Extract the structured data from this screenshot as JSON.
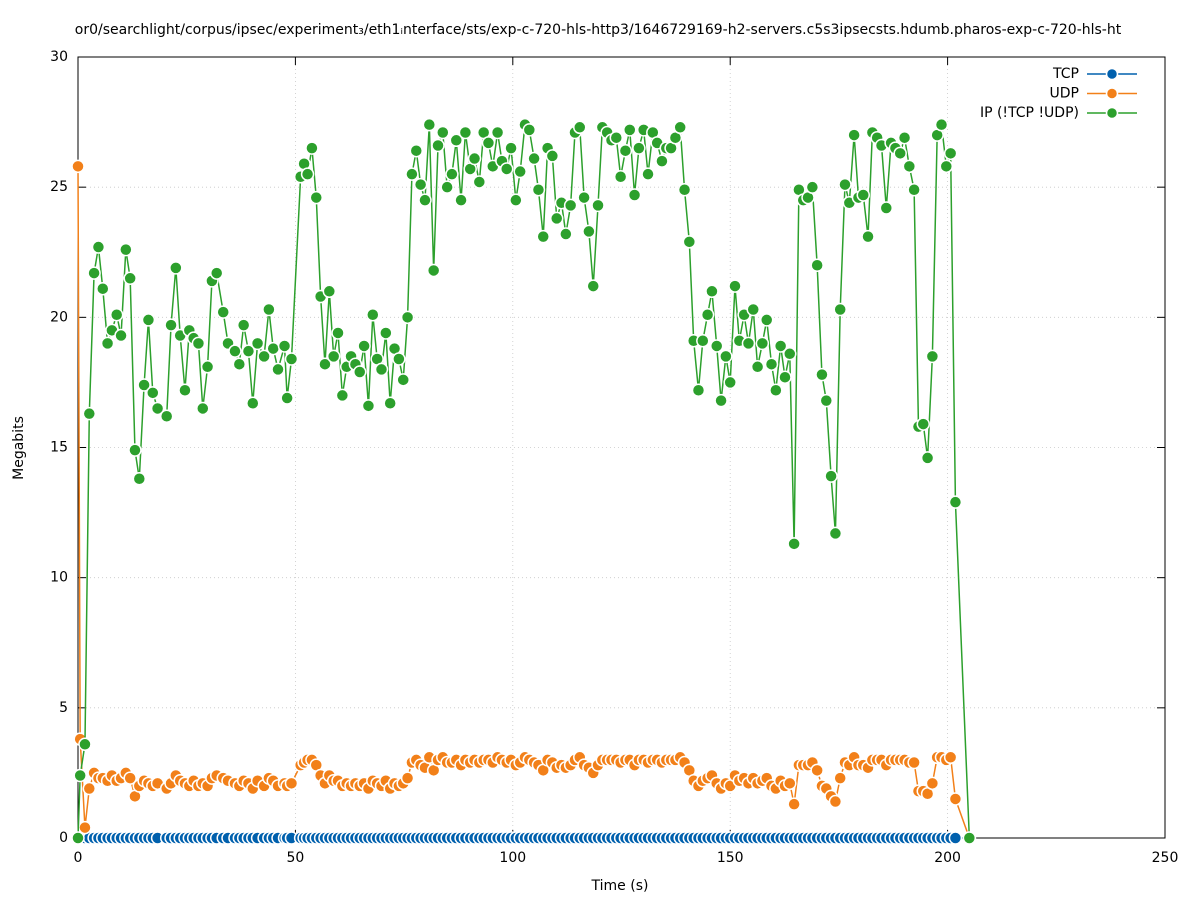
{
  "chart_data": {
    "type": "line",
    "title": "or0/searchlight/corpus/ipsec/experiment₃/eth1ᵢnterface/sts/exp-c-720-hls-http3/1646729169-h2-servers.c5s3ipsecsts.hdumb.pharos-exp-c-720-hls-ht",
    "x_label": "Time (s)",
    "y_label": "Megabits",
    "xlim": [
      0,
      250
    ],
    "xticks": [
      0,
      50,
      100,
      150,
      200,
      250
    ],
    "ylim": [
      0,
      30
    ],
    "yticks": [
      0,
      5,
      10,
      15,
      20,
      25,
      30
    ],
    "grid": true,
    "legend": "top-right",
    "x": [
      0,
      0.5,
      1.6,
      2.6,
      3.7,
      4.7,
      5.7,
      6.8,
      7.8,
      8.9,
      9.9,
      11.0,
      12.0,
      13.1,
      14.1,
      15.2,
      16.2,
      17.2,
      18.3,
      20.4,
      21.4,
      22.5,
      23.5,
      24.6,
      25.6,
      26.6,
      27.7,
      28.7,
      29.8,
      30.8,
      31.9,
      33.4,
      34.5,
      36.1,
      37.1,
      38.1,
      39.2,
      40.2,
      41.3,
      42.8,
      43.9,
      44.9,
      46.0,
      47.5,
      48.1,
      49.1,
      51.2,
      52.0,
      52.8,
      53.8,
      54.8,
      55.8,
      56.8,
      57.8,
      58.8,
      59.8,
      60.8,
      61.8,
      62.8,
      63.8,
      64.8,
      65.8,
      66.8,
      67.8,
      68.8,
      69.8,
      70.8,
      71.8,
      72.8,
      73.8,
      74.8,
      75.8,
      76.8,
      77.8,
      78.8,
      79.8,
      80.8,
      81.8,
      82.8,
      83.9,
      84.9,
      86.0,
      87.0,
      88.1,
      89.1,
      90.2,
      91.2,
      92.3,
      93.3,
      94.4,
      95.4,
      96.5,
      97.5,
      98.6,
      99.6,
      100.7,
      101.7,
      102.8,
      103.8,
      104.9,
      105.9,
      107.0,
      108.0,
      109.1,
      110.1,
      111.2,
      112.2,
      113.3,
      114.3,
      115.4,
      116.4,
      117.5,
      118.5,
      119.6,
      120.6,
      121.7,
      122.7,
      123.8,
      124.8,
      125.9,
      126.9,
      128.0,
      129.0,
      130.1,
      131.1,
      132.2,
      133.2,
      134.3,
      135.3,
      136.4,
      137.4,
      138.5,
      139.5,
      140.6,
      141.6,
      142.7,
      143.7,
      144.8,
      145.8,
      146.9,
      147.9,
      149.0,
      150.0,
      151.1,
      152.1,
      153.2,
      154.2,
      155.3,
      156.3,
      157.4,
      158.4,
      159.5,
      160.5,
      161.6,
      162.6,
      163.7,
      164.7,
      165.8,
      166.8,
      167.9,
      168.9,
      170.0,
      171.1,
      172.1,
      173.2,
      174.2,
      175.3,
      176.4,
      177.4,
      178.5,
      179.5,
      180.6,
      181.7,
      182.7,
      183.8,
      184.8,
      185.9,
      187.0,
      188.0,
      189.1,
      190.1,
      191.2,
      192.3,
      193.3,
      194.4,
      195.4,
      196.5,
      197.6,
      198.6,
      199.7,
      200.7,
      201.8,
      205.0
    ],
    "series": [
      {
        "name": "TCP",
        "color": "#0060ad",
        "values": [
          0,
          0,
          0,
          0,
          0,
          0,
          0,
          0,
          0,
          0,
          0,
          0,
          0,
          0,
          0,
          0,
          0,
          0,
          0,
          0,
          0,
          0,
          0,
          0,
          0,
          0,
          0,
          0,
          0,
          0,
          0,
          0,
          0,
          0,
          0,
          0,
          0,
          0,
          0,
          0,
          0,
          0,
          0,
          0,
          0,
          0,
          0,
          0,
          0,
          0,
          0,
          0,
          0,
          0,
          0,
          0,
          0,
          0,
          0,
          0,
          0,
          0,
          0,
          0,
          0,
          0,
          0,
          0,
          0,
          0,
          0,
          0,
          0,
          0,
          0,
          0,
          0,
          0,
          0,
          0,
          0,
          0,
          0,
          0,
          0,
          0,
          0,
          0,
          0,
          0,
          0,
          0,
          0,
          0,
          0,
          0,
          0,
          0,
          0,
          0,
          0,
          0,
          0,
          0,
          0,
          0,
          0,
          0,
          0,
          0,
          0,
          0,
          0,
          0,
          0,
          0,
          0,
          0,
          0,
          0,
          0,
          0,
          0,
          0,
          0,
          0,
          0,
          0,
          0,
          0,
          0,
          0,
          0,
          0,
          0,
          0,
          0,
          0,
          0,
          0,
          0,
          0,
          0,
          0,
          0,
          0,
          0,
          0,
          0,
          0,
          0,
          0,
          0,
          0,
          0,
          0,
          0,
          0,
          0,
          0,
          0,
          0,
          0,
          0,
          0,
          0,
          0,
          0,
          0,
          0,
          0,
          0,
          0,
          0,
          0,
          0,
          0,
          0,
          0,
          0,
          0,
          0,
          0,
          0,
          0,
          0,
          0,
          0,
          0,
          0,
          0,
          0,
          0
        ]
      },
      {
        "name": "UDP",
        "color": "#f28019",
        "values": [
          25.8,
          3.8,
          0.4,
          1.9,
          2.5,
          2.3,
          2.3,
          2.2,
          2.4,
          2.2,
          2.3,
          2.5,
          2.3,
          1.6,
          2.0,
          2.2,
          2.1,
          2.0,
          2.1,
          1.9,
          2.1,
          2.4,
          2.2,
          2.1,
          2.0,
          2.2,
          2.0,
          2.1,
          2.0,
          2.3,
          2.4,
          2.3,
          2.2,
          2.1,
          2.0,
          2.2,
          2.1,
          1.9,
          2.2,
          2.0,
          2.3,
          2.2,
          2.0,
          2.1,
          2.0,
          2.1,
          2.8,
          2.9,
          3.0,
          3.0,
          2.8,
          2.4,
          2.1,
          2.4,
          2.2,
          2.2,
          2.0,
          2.1,
          2.0,
          2.1,
          2.0,
          2.1,
          1.9,
          2.2,
          2.1,
          2.0,
          2.2,
          1.9,
          2.1,
          2.0,
          2.1,
          2.3,
          2.9,
          3.0,
          2.8,
          2.7,
          3.1,
          2.6,
          3.0,
          3.1,
          2.9,
          2.9,
          3.0,
          2.8,
          3.0,
          2.9,
          3.0,
          2.9,
          3.0,
          3.0,
          2.9,
          3.1,
          3.0,
          2.9,
          3.0,
          2.8,
          2.9,
          3.1,
          3.0,
          2.9,
          2.8,
          2.6,
          3.0,
          2.9,
          2.7,
          2.8,
          2.7,
          2.8,
          3.0,
          3.1,
          2.8,
          2.7,
          2.5,
          2.8,
          3.0,
          3.0,
          3.0,
          3.0,
          2.9,
          3.0,
          3.0,
          2.8,
          3.0,
          3.0,
          2.9,
          3.0,
          3.0,
          2.9,
          3.0,
          3.0,
          3.0,
          3.1,
          2.9,
          2.6,
          2.2,
          2.0,
          2.2,
          2.3,
          2.4,
          2.1,
          1.9,
          2.1,
          2.0,
          2.4,
          2.2,
          2.3,
          2.1,
          2.3,
          2.1,
          2.2,
          2.3,
          2.0,
          1.9,
          2.2,
          2.0,
          2.1,
          1.3,
          2.8,
          2.8,
          2.8,
          2.9,
          2.6,
          2.0,
          1.9,
          1.6,
          1.4,
          2.3,
          2.9,
          2.8,
          3.1,
          2.8,
          2.8,
          2.7,
          3.0,
          3.0,
          3.0,
          2.8,
          3.0,
          3.0,
          3.0,
          3.0,
          2.9,
          2.9,
          1.8,
          1.8,
          1.7,
          2.1,
          3.1,
          3.1,
          3.0,
          3.1,
          1.5,
          0
        ]
      },
      {
        "name": "IP (!TCP  !UDP)",
        "color": "#2ca02c",
        "values": [
          0,
          2.4,
          3.6,
          16.3,
          21.7,
          22.7,
          21.1,
          19.0,
          19.5,
          20.1,
          19.3,
          22.6,
          21.5,
          14.9,
          13.8,
          17.4,
          19.9,
          17.1,
          16.5,
          16.2,
          19.7,
          21.9,
          19.3,
          17.2,
          19.5,
          19.2,
          19.0,
          16.5,
          18.1,
          21.4,
          21.7,
          20.2,
          19.0,
          18.7,
          18.2,
          19.7,
          18.7,
          16.7,
          19.0,
          18.5,
          20.3,
          18.8,
          18.0,
          18.9,
          16.9,
          18.4,
          25.4,
          25.9,
          25.5,
          26.5,
          24.6,
          20.8,
          18.2,
          21.0,
          18.5,
          19.4,
          17.0,
          18.1,
          18.5,
          18.2,
          17.9,
          18.9,
          16.6,
          20.1,
          18.4,
          18.0,
          19.4,
          16.7,
          18.8,
          18.4,
          17.6,
          20.0,
          25.5,
          26.4,
          25.1,
          24.5,
          27.4,
          21.8,
          26.6,
          27.1,
          25.0,
          25.5,
          26.8,
          24.5,
          27.1,
          25.7,
          26.1,
          25.2,
          27.1,
          26.7,
          25.8,
          27.1,
          26.0,
          25.7,
          26.5,
          24.5,
          25.6,
          27.4,
          27.2,
          26.1,
          24.9,
          23.1,
          26.5,
          26.2,
          23.8,
          24.4,
          23.2,
          24.3,
          27.1,
          27.3,
          24.6,
          23.3,
          21.2,
          24.3,
          27.3,
          27.1,
          26.8,
          26.9,
          25.4,
          26.4,
          27.2,
          24.7,
          26.5,
          27.2,
          25.5,
          27.1,
          26.7,
          26.0,
          26.5,
          26.5,
          26.9,
          27.3,
          24.9,
          22.9,
          19.1,
          17.2,
          19.1,
          20.1,
          21.0,
          18.9,
          16.8,
          18.5,
          17.5,
          21.2,
          19.1,
          20.1,
          19.0,
          20.3,
          18.1,
          19.0,
          19.9,
          18.2,
          17.2,
          18.9,
          17.7,
          18.6,
          11.3,
          24.9,
          24.5,
          24.6,
          25.0,
          22.0,
          17.8,
          16.8,
          13.9,
          11.7,
          20.3,
          25.1,
          24.4,
          27.0,
          24.6,
          24.7,
          23.1,
          27.1,
          26.9,
          26.6,
          24.2,
          26.7,
          26.5,
          26.3,
          26.9,
          25.8,
          24.9,
          15.8,
          15.9,
          14.6,
          18.5,
          27.0,
          27.4,
          25.8,
          26.3,
          12.9,
          0
        ]
      }
    ]
  }
}
